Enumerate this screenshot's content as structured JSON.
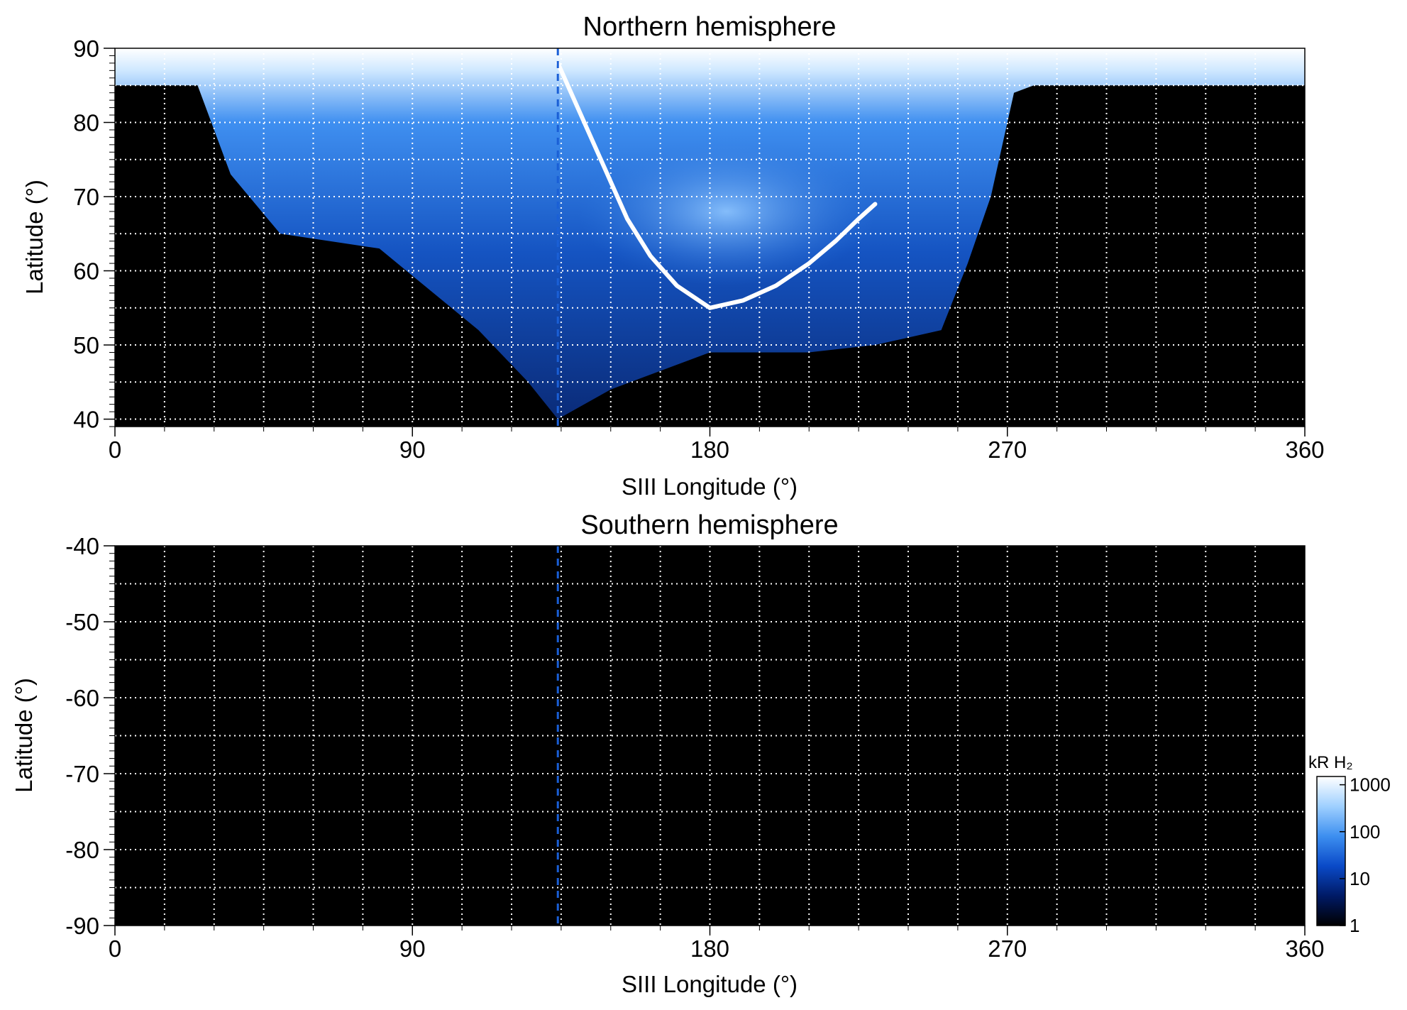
{
  "chart_data": [
    {
      "type": "heatmap",
      "title": "Northern hemisphere",
      "xlabel": "SIII Longitude (°)",
      "ylabel": "Latitude (°)",
      "xlim": [
        0,
        360
      ],
      "ylim": [
        39,
        90
      ],
      "xticks": [
        0,
        90,
        180,
        270,
        360
      ],
      "xtick_labels": [
        "0",
        "90",
        "180",
        "270",
        "360"
      ],
      "yticks": [
        40,
        50,
        60,
        70,
        80,
        90
      ],
      "ytick_labels": [
        "40",
        "50",
        "60",
        "70",
        "80",
        "90"
      ],
      "grid": true,
      "grid_x_step": 15,
      "grid_y_step": 5,
      "marker_longitude": 134,
      "marker_color": "#1a5fd6",
      "colormap": "black-blue-white",
      "colorscale": "log",
      "observed_region_lower_boundary": {
        "longitude": [
          0,
          25,
          35,
          50,
          80,
          110,
          125,
          134,
          150,
          180,
          210,
          230,
          250,
          258,
          265,
          272,
          278,
          360
        ],
        "latitude": [
          85,
          85,
          73,
          65,
          63,
          52,
          45,
          40,
          44,
          49,
          49,
          50,
          52,
          61,
          70,
          84,
          85,
          85
        ]
      },
      "main_oval": {
        "longitude": [
          134,
          138,
          142,
          146,
          150,
          155,
          162,
          170,
          180,
          190,
          200,
          210,
          218,
          225,
          230
        ],
        "latitude": [
          88,
          84,
          80,
          76,
          72,
          67,
          62,
          58,
          55,
          56,
          58,
          61,
          64,
          67,
          69
        ]
      },
      "polar_bright_region": {
        "longitude_range": [
          140,
          230
        ],
        "latitude_range": [
          58,
          78
        ]
      }
    },
    {
      "type": "heatmap",
      "title": "Southern hemisphere",
      "xlabel": "SIII Longitude (°)",
      "ylabel": "Latitude (°)",
      "xlim": [
        0,
        360
      ],
      "ylim": [
        -90,
        -40
      ],
      "xticks": [
        0,
        90,
        180,
        270,
        360
      ],
      "xtick_labels": [
        "0",
        "90",
        "180",
        "270",
        "360"
      ],
      "yticks": [
        -40,
        -50,
        -60,
        -70,
        -80,
        -90
      ],
      "ytick_labels": [
        "-40",
        "-50",
        "-60",
        "-70",
        "-80",
        "-90"
      ],
      "grid": true,
      "grid_x_step": 15,
      "grid_y_step": 5,
      "marker_longitude": 134,
      "marker_color": "#1a5fd6",
      "colormap": "black-blue-white",
      "colorscale": "log",
      "observed_region": "none"
    }
  ],
  "colorbar": {
    "title": "kR H₂",
    "scale": "log",
    "range": [
      1,
      1500
    ],
    "ticks": [
      1,
      10,
      100,
      1000
    ],
    "tick_labels": [
      "1",
      "10",
      "100",
      "1000"
    ],
    "colors": [
      "#000000",
      "#001a66",
      "#0a4ac8",
      "#3d8ff0",
      "#9fd0ff",
      "#ffffff"
    ]
  }
}
